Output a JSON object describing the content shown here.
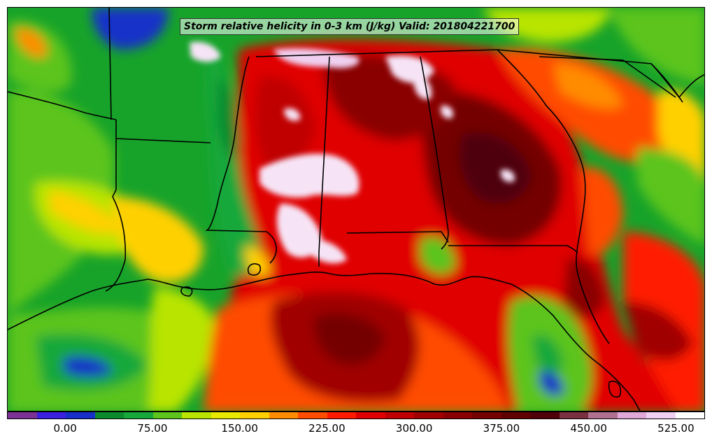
{
  "title": "Storm relative helicity in 0-3 km (J/kg) Valid: 201804221700",
  "colorbar": {
    "colors": [
      "#7b3294",
      "#3b20e0",
      "#1730c8",
      "#0e8a2e",
      "#16a83a",
      "#5cc41a",
      "#b8e400",
      "#e8e800",
      "#ffd000",
      "#ff8c00",
      "#ff4c00",
      "#ff1a00",
      "#e00000",
      "#c00000",
      "#a00000",
      "#8a0000",
      "#740000",
      "#600000",
      "#500008",
      "#7a3040",
      "#b07090",
      "#e0a8d8",
      "#f0d0f0",
      "#ffffff"
    ],
    "labels": [
      {
        "text": "0.00",
        "value": 0
      },
      {
        "text": "75.00",
        "value": 75
      },
      {
        "text": "150.00",
        "value": 150
      },
      {
        "text": "225.00",
        "value": 225
      },
      {
        "text": "300.00",
        "value": 300
      },
      {
        "text": "375.00",
        "value": 375
      },
      {
        "text": "450.00",
        "value": 450
      },
      {
        "text": "525.00",
        "value": 525
      }
    ],
    "min_value": -50,
    "max_value": 550
  }
}
